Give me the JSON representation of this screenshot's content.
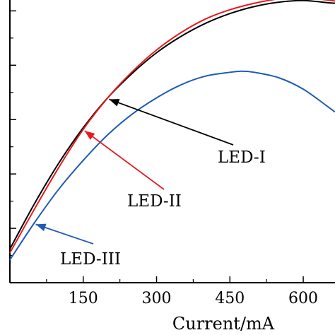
{
  "chart_data": {
    "type": "line",
    "title": "",
    "xlabel": "Current/mA",
    "ylabel": "",
    "xlim": [
      0,
      665
    ],
    "ylim": [
      0,
      5.2
    ],
    "grid": false,
    "x_ticks": [
      150,
      300,
      450,
      600
    ],
    "x_tick_labels": [
      "150",
      "300",
      "450",
      "600"
    ],
    "y_ticks": [
      0,
      1,
      2,
      3,
      4,
      5
    ],
    "series": [
      {
        "name": "LED-I",
        "color": "#000000",
        "x": [
          0,
          50,
          100,
          150,
          200,
          250,
          300,
          350,
          400,
          450,
          500,
          550,
          600,
          650,
          665
        ],
        "y": [
          0.62,
          1.45,
          2.2,
          2.85,
          3.4,
          3.85,
          4.23,
          4.53,
          4.77,
          4.95,
          5.08,
          5.16,
          5.19,
          5.15,
          5.14
        ]
      },
      {
        "name": "LED-II",
        "color": "#e8191e",
        "x": [
          0,
          50,
          100,
          150,
          200,
          250,
          300,
          350,
          400,
          450,
          500,
          550,
          600,
          650,
          665
        ],
        "y": [
          0.55,
          1.35,
          2.12,
          2.82,
          3.4,
          3.88,
          4.28,
          4.6,
          4.85,
          5.02,
          5.14,
          5.22,
          5.24,
          5.2,
          5.18
        ]
      },
      {
        "name": "LED-III",
        "color": "#1f5bb5",
        "x": [
          0,
          50,
          100,
          150,
          200,
          250,
          300,
          350,
          400,
          450,
          475,
          500,
          550,
          600,
          650,
          665
        ],
        "y": [
          0.42,
          1.1,
          1.72,
          2.25,
          2.72,
          3.1,
          3.4,
          3.64,
          3.8,
          3.87,
          3.89,
          3.87,
          3.77,
          3.56,
          3.24,
          3.14
        ]
      }
    ],
    "annotations": [
      {
        "text": "LED-I",
        "series": 0,
        "arrow_to": [
          200,
          3.4
        ]
      },
      {
        "text": "LED-II",
        "series": 1,
        "arrow_to": [
          150,
          2.82
        ]
      },
      {
        "text": "LED-III",
        "series": 2,
        "arrow_to": [
          50,
          1.1
        ]
      }
    ]
  }
}
